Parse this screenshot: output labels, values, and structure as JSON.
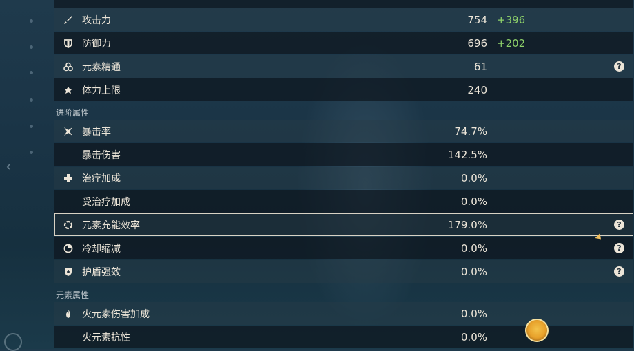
{
  "rows": [
    {
      "label": "攻击力",
      "value": "754",
      "bonus": "+396",
      "icon": "sword-icon",
      "help": false
    },
    {
      "label": "防御力",
      "value": "696",
      "bonus": "+202",
      "icon": "shield-icon",
      "help": false
    },
    {
      "label": "元素精通",
      "value": "61",
      "bonus": "",
      "icon": "elemental-mastery-icon",
      "help": true
    },
    {
      "label": "体力上限",
      "value": "240",
      "bonus": "",
      "icon": "stamina-icon",
      "help": false
    },
    {
      "label": "暴击率",
      "value": "74.7%",
      "bonus": "",
      "icon": "crit-rate-icon",
      "help": false
    },
    {
      "label": "暴击伤害",
      "value": "142.5%",
      "bonus": "",
      "icon": "",
      "help": false
    },
    {
      "label": "治疗加成",
      "value": "0.0%",
      "bonus": "",
      "icon": "healing-cross-icon",
      "help": false
    },
    {
      "label": "受治疗加成",
      "value": "0.0%",
      "bonus": "",
      "icon": "",
      "help": false
    },
    {
      "label": "元素充能效率",
      "value": "179.0%",
      "bonus": "",
      "icon": "energy-recharge-icon",
      "help": true
    },
    {
      "label": "冷却缩减",
      "value": "0.0%",
      "bonus": "",
      "icon": "cooldown-icon",
      "help": true
    },
    {
      "label": "护盾强效",
      "value": "0.0%",
      "bonus": "",
      "icon": "shield-strength-icon",
      "help": true
    },
    {
      "label": "火元素伤害加成",
      "value": "0.0%",
      "bonus": "",
      "icon": "pyro-icon",
      "help": false
    },
    {
      "label": "火元素抗性",
      "value": "0.0%",
      "bonus": "",
      "icon": "",
      "help": false
    }
  ],
  "sections": {
    "advanced": "进阶属性",
    "elemental": "元素属性"
  },
  "help_glyph": "?",
  "colors": {
    "bonus_green": "#8ed16a",
    "text_cream": "#ece5d8"
  }
}
